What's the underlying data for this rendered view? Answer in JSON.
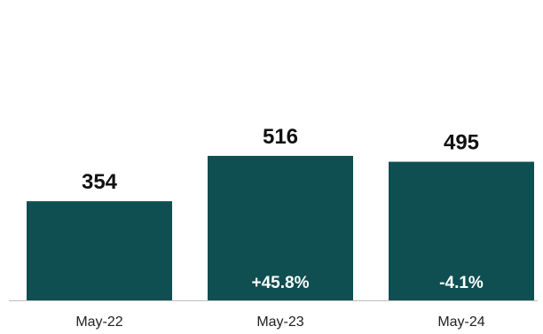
{
  "chart_data": {
    "type": "bar",
    "categories": [
      "May-22",
      "May-23",
      "May-24"
    ],
    "values": [
      354,
      516,
      495
    ],
    "data_labels": [
      "354",
      "516",
      "495"
    ],
    "change_labels": [
      "",
      "+45.8%",
      "-4.1%"
    ],
    "title": "",
    "xlabel": "",
    "ylabel": "",
    "ylim": [
      0,
      600
    ],
    "grid": false,
    "legend": "none",
    "colors": {
      "bar": "#0f4f51",
      "axis": "#bfbfbf",
      "bar_text": "#ffffff",
      "value_text": "#111111"
    }
  }
}
